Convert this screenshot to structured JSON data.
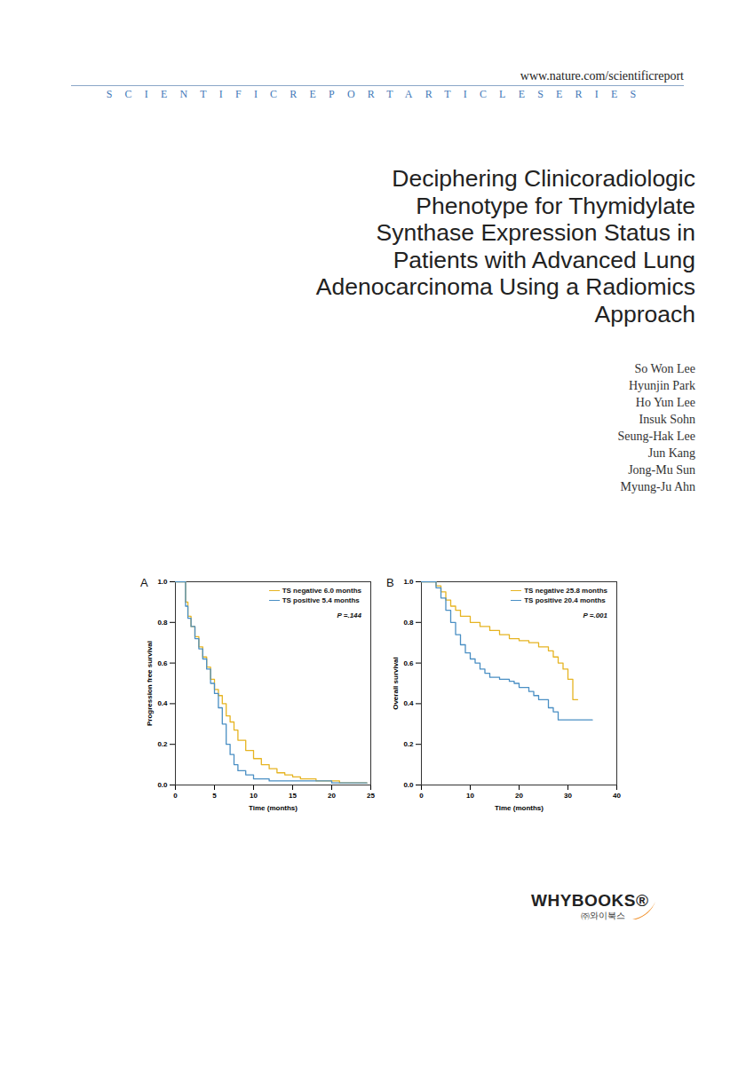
{
  "header": {
    "url": "www.nature.com/scientificreport",
    "series": "SCIENTIFICREPORTARTICLESERIES"
  },
  "title_lines": [
    "Deciphering Clinicoradiologic",
    "Phenotype for Thymidylate",
    "Synthase Expression Status in",
    "Patients with Advanced Lung",
    "Adenocarcinoma Using a Radiomics",
    "Approach"
  ],
  "authors": [
    "So Won Lee",
    "Hyunjin Park",
    "Ho Yun Lee",
    "Insuk Sohn",
    "Seung-Hak Lee",
    "Jun Kang",
    "Jong-Mu Sun",
    "Myung-Ju Ahn"
  ],
  "chart_data": [
    {
      "type": "step",
      "panel": "A",
      "x_label": "Time (months)",
      "y_label": "Progression free survival",
      "xlim": [
        0,
        25
      ],
      "xticks": [
        0,
        5,
        10,
        15,
        20,
        25
      ],
      "ylim": [
        0,
        1
      ],
      "yticks": [
        {
          "value": 0,
          "label": "0.0"
        },
        0.2,
        0.4,
        0.6,
        0.8,
        {
          "value": 1,
          "label": "1.0"
        }
      ],
      "grid": false,
      "legend": "top-right",
      "annotation": "P =.144",
      "series": [
        {
          "name": "TS negative  6.0 months",
          "color": "#e6b422",
          "x": [
            0,
            1,
            1.3,
            1.6,
            2,
            2.5,
            3,
            3.5,
            4,
            4.5,
            5,
            5.5,
            6,
            6.5,
            7,
            7.5,
            8,
            9,
            10,
            11,
            12,
            13,
            14,
            15,
            16,
            18,
            21,
            24.5
          ],
          "values": [
            1,
            1,
            0.9,
            0.83,
            0.78,
            0.73,
            0.68,
            0.63,
            0.58,
            0.52,
            0.47,
            0.44,
            0.4,
            0.34,
            0.31,
            0.27,
            0.22,
            0.17,
            0.13,
            0.1,
            0.08,
            0.06,
            0.05,
            0.04,
            0.03,
            0.02,
            0.01,
            0.01
          ]
        },
        {
          "name": "TS positive  5.4 months",
          "color": "#4a8fc4",
          "x": [
            0,
            1,
            1.3,
            1.6,
            2,
            2.5,
            3,
            3.5,
            4,
            4.5,
            5,
            5.5,
            6,
            6.5,
            7,
            7.5,
            8,
            9,
            10,
            12,
            15,
            20,
            24.5
          ],
          "values": [
            1,
            1,
            0.88,
            0.82,
            0.78,
            0.72,
            0.67,
            0.62,
            0.57,
            0.5,
            0.45,
            0.38,
            0.3,
            0.2,
            0.15,
            0.1,
            0.07,
            0.05,
            0.03,
            0.02,
            0.02,
            0.01,
            0.01
          ]
        }
      ]
    },
    {
      "type": "step",
      "panel": "B",
      "x_label": "Time (months)",
      "y_label": "Overall survival",
      "xlim": [
        0,
        40
      ],
      "xticks": [
        0,
        10,
        20,
        30,
        40
      ],
      "ylim": [
        0,
        1
      ],
      "yticks": [
        {
          "value": 0,
          "label": "0.0"
        },
        0.2,
        0.4,
        0.6,
        0.8,
        {
          "value": 1,
          "label": "1.0"
        }
      ],
      "grid": false,
      "legend": "top-right",
      "annotation": "P =.001",
      "series": [
        {
          "name": "TS negative  25.8 months",
          "color": "#e6b422",
          "x": [
            0,
            2,
            3,
            4,
            5,
            6,
            7,
            8,
            10,
            12,
            14,
            16,
            18,
            20,
            22,
            24,
            26,
            27,
            28,
            29,
            30,
            31,
            32
          ],
          "values": [
            1,
            1,
            0.98,
            0.95,
            0.91,
            0.88,
            0.86,
            0.83,
            0.8,
            0.78,
            0.76,
            0.74,
            0.72,
            0.71,
            0.7,
            0.68,
            0.66,
            0.63,
            0.6,
            0.57,
            0.52,
            0.42,
            0.42
          ]
        },
        {
          "name": "TS positive  20.4 months",
          "color": "#4a8fc4",
          "x": [
            0,
            2,
            3,
            4,
            5,
            6,
            7,
            8,
            9,
            10,
            11,
            12,
            13,
            14,
            16,
            18,
            19,
            20,
            22,
            23,
            24,
            26,
            27,
            28,
            35
          ],
          "values": [
            1,
            1,
            0.97,
            0.92,
            0.86,
            0.8,
            0.74,
            0.69,
            0.65,
            0.62,
            0.6,
            0.57,
            0.55,
            0.53,
            0.52,
            0.51,
            0.5,
            0.48,
            0.46,
            0.44,
            0.42,
            0.38,
            0.36,
            0.32,
            0.32
          ]
        }
      ]
    }
  ],
  "publisher": {
    "name": "WHYBOOKS®",
    "korean": "㈜와이북스"
  }
}
